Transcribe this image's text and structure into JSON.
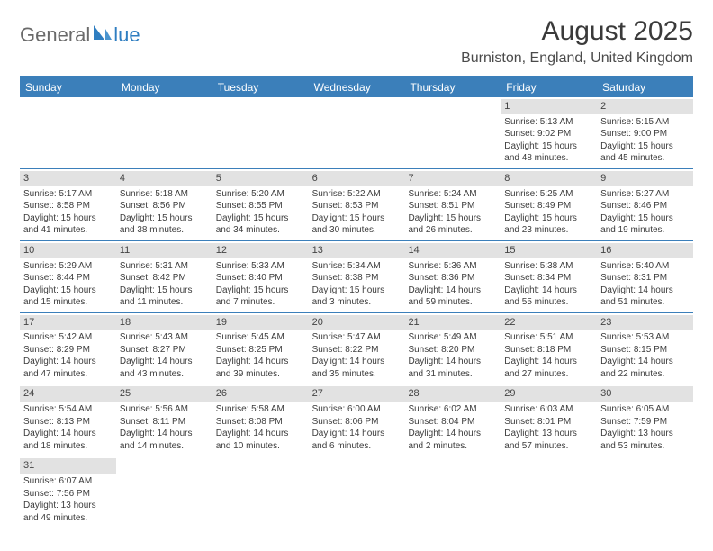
{
  "logo": {
    "text_left": "General",
    "text_right": "lue"
  },
  "title": "August 2025",
  "location": "Burniston, England, United Kingdom",
  "colors": {
    "header_bg": "#3b7fba",
    "header_text": "#ffffff",
    "daynum_bg": "#e2e2e2",
    "grid_line": "#3b7fba",
    "logo_gray": "#6a6a6a",
    "logo_blue": "#2f7ec1"
  },
  "fonts": {
    "title_size": 30,
    "location_size": 16,
    "dow_size": 12,
    "cell_size": 10
  },
  "days_of_week": [
    "Sunday",
    "Monday",
    "Tuesday",
    "Wednesday",
    "Thursday",
    "Friday",
    "Saturday"
  ],
  "weeks": [
    [
      null,
      null,
      null,
      null,
      null,
      {
        "n": "1",
        "sunrise": "Sunrise: 5:13 AM",
        "sunset": "Sunset: 9:02 PM",
        "d1": "Daylight: 15 hours",
        "d2": "and 48 minutes."
      },
      {
        "n": "2",
        "sunrise": "Sunrise: 5:15 AM",
        "sunset": "Sunset: 9:00 PM",
        "d1": "Daylight: 15 hours",
        "d2": "and 45 minutes."
      }
    ],
    [
      {
        "n": "3",
        "sunrise": "Sunrise: 5:17 AM",
        "sunset": "Sunset: 8:58 PM",
        "d1": "Daylight: 15 hours",
        "d2": "and 41 minutes."
      },
      {
        "n": "4",
        "sunrise": "Sunrise: 5:18 AM",
        "sunset": "Sunset: 8:56 PM",
        "d1": "Daylight: 15 hours",
        "d2": "and 38 minutes."
      },
      {
        "n": "5",
        "sunrise": "Sunrise: 5:20 AM",
        "sunset": "Sunset: 8:55 PM",
        "d1": "Daylight: 15 hours",
        "d2": "and 34 minutes."
      },
      {
        "n": "6",
        "sunrise": "Sunrise: 5:22 AM",
        "sunset": "Sunset: 8:53 PM",
        "d1": "Daylight: 15 hours",
        "d2": "and 30 minutes."
      },
      {
        "n": "7",
        "sunrise": "Sunrise: 5:24 AM",
        "sunset": "Sunset: 8:51 PM",
        "d1": "Daylight: 15 hours",
        "d2": "and 26 minutes."
      },
      {
        "n": "8",
        "sunrise": "Sunrise: 5:25 AM",
        "sunset": "Sunset: 8:49 PM",
        "d1": "Daylight: 15 hours",
        "d2": "and 23 minutes."
      },
      {
        "n": "9",
        "sunrise": "Sunrise: 5:27 AM",
        "sunset": "Sunset: 8:46 PM",
        "d1": "Daylight: 15 hours",
        "d2": "and 19 minutes."
      }
    ],
    [
      {
        "n": "10",
        "sunrise": "Sunrise: 5:29 AM",
        "sunset": "Sunset: 8:44 PM",
        "d1": "Daylight: 15 hours",
        "d2": "and 15 minutes."
      },
      {
        "n": "11",
        "sunrise": "Sunrise: 5:31 AM",
        "sunset": "Sunset: 8:42 PM",
        "d1": "Daylight: 15 hours",
        "d2": "and 11 minutes."
      },
      {
        "n": "12",
        "sunrise": "Sunrise: 5:33 AM",
        "sunset": "Sunset: 8:40 PM",
        "d1": "Daylight: 15 hours",
        "d2": "and 7 minutes."
      },
      {
        "n": "13",
        "sunrise": "Sunrise: 5:34 AM",
        "sunset": "Sunset: 8:38 PM",
        "d1": "Daylight: 15 hours",
        "d2": "and 3 minutes."
      },
      {
        "n": "14",
        "sunrise": "Sunrise: 5:36 AM",
        "sunset": "Sunset: 8:36 PM",
        "d1": "Daylight: 14 hours",
        "d2": "and 59 minutes."
      },
      {
        "n": "15",
        "sunrise": "Sunrise: 5:38 AM",
        "sunset": "Sunset: 8:34 PM",
        "d1": "Daylight: 14 hours",
        "d2": "and 55 minutes."
      },
      {
        "n": "16",
        "sunrise": "Sunrise: 5:40 AM",
        "sunset": "Sunset: 8:31 PM",
        "d1": "Daylight: 14 hours",
        "d2": "and 51 minutes."
      }
    ],
    [
      {
        "n": "17",
        "sunrise": "Sunrise: 5:42 AM",
        "sunset": "Sunset: 8:29 PM",
        "d1": "Daylight: 14 hours",
        "d2": "and 47 minutes."
      },
      {
        "n": "18",
        "sunrise": "Sunrise: 5:43 AM",
        "sunset": "Sunset: 8:27 PM",
        "d1": "Daylight: 14 hours",
        "d2": "and 43 minutes."
      },
      {
        "n": "19",
        "sunrise": "Sunrise: 5:45 AM",
        "sunset": "Sunset: 8:25 PM",
        "d1": "Daylight: 14 hours",
        "d2": "and 39 minutes."
      },
      {
        "n": "20",
        "sunrise": "Sunrise: 5:47 AM",
        "sunset": "Sunset: 8:22 PM",
        "d1": "Daylight: 14 hours",
        "d2": "and 35 minutes."
      },
      {
        "n": "21",
        "sunrise": "Sunrise: 5:49 AM",
        "sunset": "Sunset: 8:20 PM",
        "d1": "Daylight: 14 hours",
        "d2": "and 31 minutes."
      },
      {
        "n": "22",
        "sunrise": "Sunrise: 5:51 AM",
        "sunset": "Sunset: 8:18 PM",
        "d1": "Daylight: 14 hours",
        "d2": "and 27 minutes."
      },
      {
        "n": "23",
        "sunrise": "Sunrise: 5:53 AM",
        "sunset": "Sunset: 8:15 PM",
        "d1": "Daylight: 14 hours",
        "d2": "and 22 minutes."
      }
    ],
    [
      {
        "n": "24",
        "sunrise": "Sunrise: 5:54 AM",
        "sunset": "Sunset: 8:13 PM",
        "d1": "Daylight: 14 hours",
        "d2": "and 18 minutes."
      },
      {
        "n": "25",
        "sunrise": "Sunrise: 5:56 AM",
        "sunset": "Sunset: 8:11 PM",
        "d1": "Daylight: 14 hours",
        "d2": "and 14 minutes."
      },
      {
        "n": "26",
        "sunrise": "Sunrise: 5:58 AM",
        "sunset": "Sunset: 8:08 PM",
        "d1": "Daylight: 14 hours",
        "d2": "and 10 minutes."
      },
      {
        "n": "27",
        "sunrise": "Sunrise: 6:00 AM",
        "sunset": "Sunset: 8:06 PM",
        "d1": "Daylight: 14 hours",
        "d2": "and 6 minutes."
      },
      {
        "n": "28",
        "sunrise": "Sunrise: 6:02 AM",
        "sunset": "Sunset: 8:04 PM",
        "d1": "Daylight: 14 hours",
        "d2": "and 2 minutes."
      },
      {
        "n": "29",
        "sunrise": "Sunrise: 6:03 AM",
        "sunset": "Sunset: 8:01 PM",
        "d1": "Daylight: 13 hours",
        "d2": "and 57 minutes."
      },
      {
        "n": "30",
        "sunrise": "Sunrise: 6:05 AM",
        "sunset": "Sunset: 7:59 PM",
        "d1": "Daylight: 13 hours",
        "d2": "and 53 minutes."
      }
    ],
    [
      {
        "n": "31",
        "sunrise": "Sunrise: 6:07 AM",
        "sunset": "Sunset: 7:56 PM",
        "d1": "Daylight: 13 hours",
        "d2": "and 49 minutes."
      },
      null,
      null,
      null,
      null,
      null,
      null
    ]
  ]
}
